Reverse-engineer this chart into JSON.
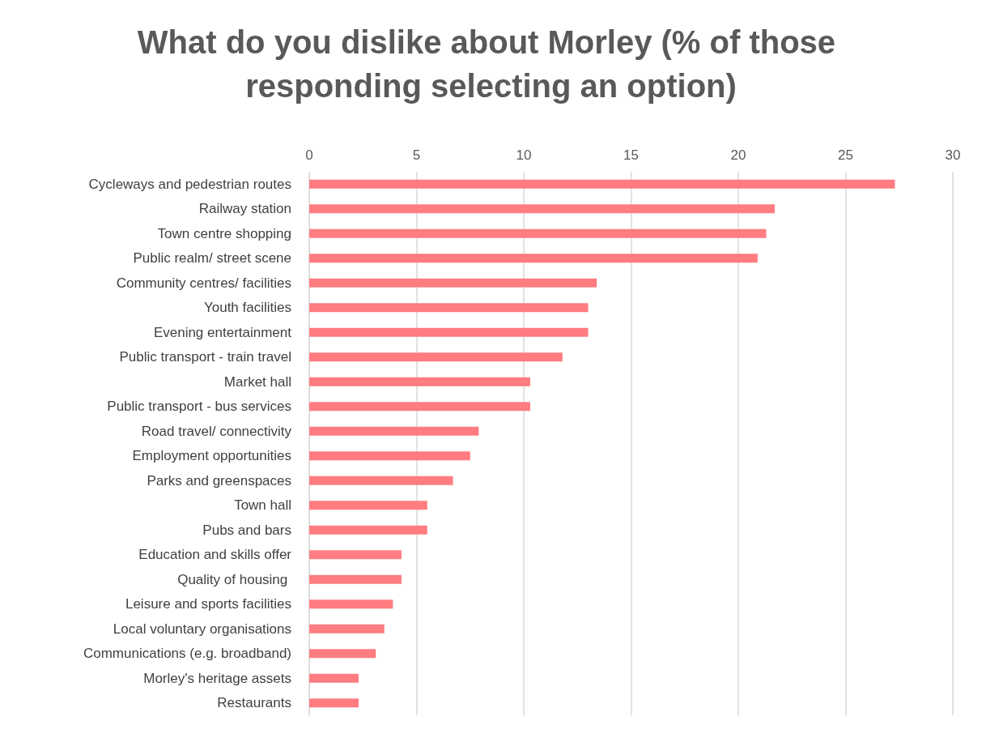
{
  "chart_data": {
    "type": "bar",
    "orientation": "horizontal",
    "title": "What do you dislike about Morley (% of those responding selecting an option)",
    "categories": [
      "Cycleways and pedestrian routes",
      "Railway station",
      "Town centre shopping",
      "Public realm/ street scene",
      "Community centres/ facilities",
      "Youth facilities",
      "Evening entertainment",
      "Public transport - train travel",
      "Market hall",
      "Public transport - bus services",
      "Road travel/ connectivity",
      "Employment opportunities",
      "Parks and greenspaces",
      "Town hall",
      "Pubs and bars",
      "Education and skills offer",
      "Quality of housing ",
      "Leisure and sports facilities",
      "Local voluntary organisations",
      "Communications (e.g. broadband)",
      "Morley's heritage assets",
      "Restaurants"
    ],
    "values": [
      27.3,
      21.7,
      21.3,
      20.9,
      13.4,
      13.0,
      13.0,
      11.8,
      10.3,
      10.3,
      7.9,
      7.5,
      6.7,
      5.5,
      5.5,
      4.3,
      4.3,
      3.9,
      3.5,
      3.1,
      2.3,
      2.3
    ],
    "color": "#ff7c80",
    "xlim": [
      0,
      30
    ],
    "xticks": [
      0,
      5,
      10,
      15,
      20,
      25,
      30
    ],
    "grid": "x"
  }
}
